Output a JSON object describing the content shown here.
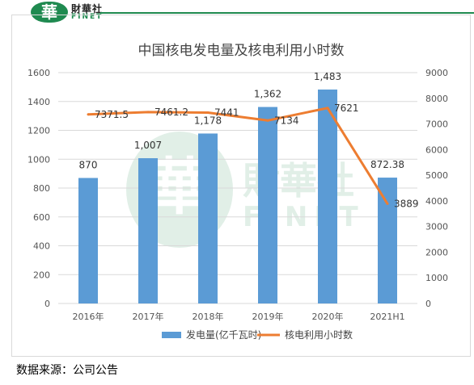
{
  "brand": {
    "logo_char": "華",
    "name_cn": "財華社",
    "name_en": "FINET"
  },
  "watermark": {
    "name_cn": "財華社",
    "name_en": "FINET"
  },
  "source_text": "数据来源：公司公告",
  "chart_data": {
    "type": "bar+line",
    "title": "中国核电发电量及核电利用小时数",
    "categories": [
      "2016年",
      "2017年",
      "2018年",
      "2019年",
      "2020年",
      "2021H1"
    ],
    "series": [
      {
        "name": "发电量(亿千瓦时)",
        "type": "bar",
        "axis": "left",
        "values": [
          870,
          1007,
          1178,
          1362,
          1483,
          872.38
        ],
        "labels": [
          "870",
          "1,007",
          "1,178",
          "1,362",
          "1,483",
          "872.38"
        ],
        "color": "#5b9bd5"
      },
      {
        "name": "核电利用小时数",
        "type": "line",
        "axis": "right",
        "values": [
          7371.5,
          7461.2,
          7441,
          7134,
          7621,
          3889
        ],
        "labels": [
          "7371.5",
          "7461.2",
          "7441",
          "7134",
          "7621",
          "3889"
        ],
        "color": "#ed7d31"
      }
    ],
    "y_left": {
      "min": 0,
      "max": 1600,
      "step": 200,
      "ticks": [
        "0",
        "200",
        "400",
        "600",
        "800",
        "1000",
        "1200",
        "1400",
        "1600"
      ]
    },
    "y_right": {
      "min": 0,
      "max": 9000,
      "step": 1000,
      "ticks": [
        "0",
        "1000",
        "2000",
        "3000",
        "4000",
        "5000",
        "6000",
        "7000",
        "8000",
        "9000"
      ]
    },
    "grid": true,
    "legend": "bottom"
  }
}
